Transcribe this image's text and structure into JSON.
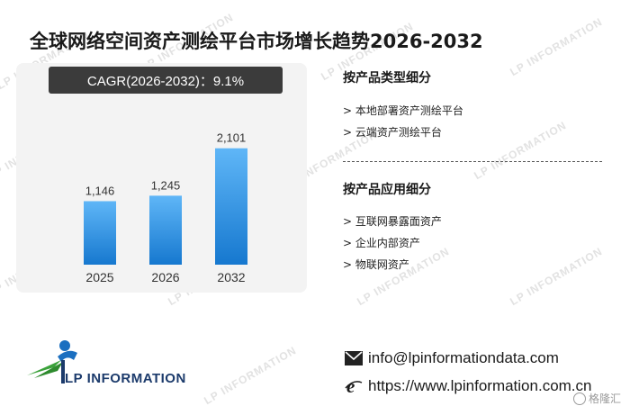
{
  "title": "全球网络空间资产测绘平台市场增长趋势2026-2032",
  "cagr_label": "CAGR(2026-2032)：9.1%",
  "chart_data": {
    "type": "bar",
    "categories": [
      "2025",
      "2026",
      "2032"
    ],
    "values": [
      1146,
      1245,
      2101
    ],
    "value_labels": [
      "1,146",
      "1,245",
      "2,101"
    ],
    "title": "",
    "xlabel": "",
    "ylabel": "",
    "ylim": [
      0,
      2600
    ],
    "grid": false,
    "colors": {
      "bar_top": "#5fb6f7",
      "bar_bottom": "#1678cf"
    }
  },
  "by_type": {
    "heading": "按产品类型细分",
    "items": [
      "> 本地部署资产测绘平台",
      "> 云端资产测绘平台"
    ]
  },
  "by_application": {
    "heading": "按产品应用细分",
    "items": [
      "> 互联网暴露面资产",
      "> 企业内部资产",
      "> 物联网资产"
    ]
  },
  "contact": {
    "email": "info@lpinformationdata.com",
    "website": "https://www.lpinformation.com.cn"
  },
  "logo": {
    "text": "LP INFORMATION"
  },
  "watermark_text": "LP INFORMATION",
  "badge_text": "格隆汇"
}
